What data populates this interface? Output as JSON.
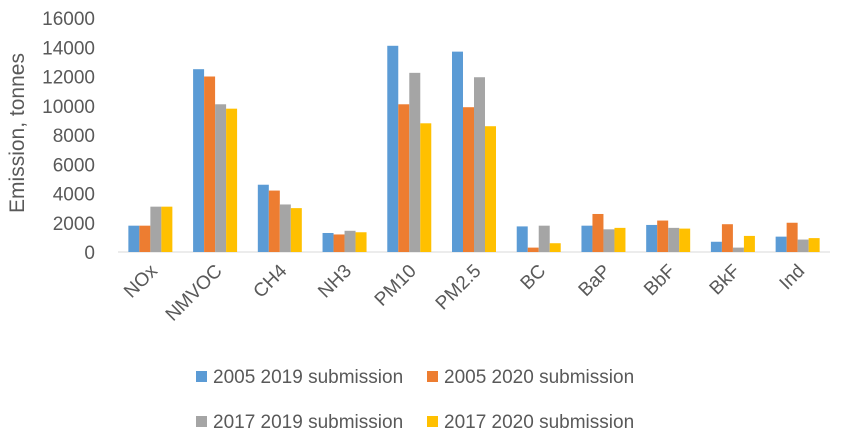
{
  "chart_data": {
    "type": "bar",
    "title": "",
    "xlabel": "",
    "ylabel": "Emission, tonnes",
    "ylim": [
      0,
      16000
    ],
    "yticks": [
      "0",
      "2000",
      "4000",
      "6000",
      "8000",
      "10000",
      "12000",
      "14000",
      "16000"
    ],
    "grid": false,
    "legend_position": "bottom",
    "categories": [
      "NOx",
      "NMVOC",
      "CH4",
      "NH3",
      "PM10",
      "PM2.5",
      "BC",
      "BaP",
      "BbF",
      "BkF",
      "Ind"
    ],
    "series": [
      {
        "name": "2005 2019 submission",
        "color": "#5B9BD5",
        "values": [
          1800,
          12500,
          4600,
          1300,
          14100,
          13700,
          1750,
          1800,
          1850,
          700,
          1050
        ]
      },
      {
        "name": "2005 2020 submission",
        "color": "#ED7D31",
        "values": [
          1800,
          12000,
          4200,
          1200,
          10100,
          9900,
          300,
          2600,
          2150,
          1900,
          2000
        ]
      },
      {
        "name": "2017 2019 submission",
        "color": "#A5A5A5",
        "values": [
          3100,
          10100,
          3250,
          1450,
          12250,
          11950,
          1800,
          1550,
          1650,
          300,
          850
        ]
      },
      {
        "name": "2017 2020 submission",
        "color": "#FFC000",
        "values": [
          3100,
          9800,
          3000,
          1350,
          8800,
          8600,
          600,
          1650,
          1600,
          1100,
          950
        ]
      }
    ]
  }
}
